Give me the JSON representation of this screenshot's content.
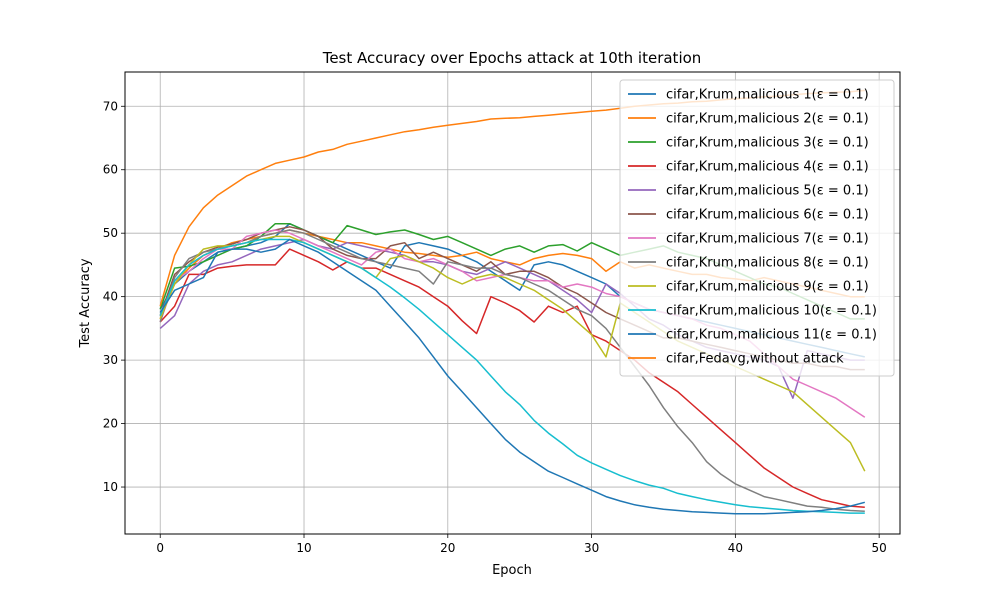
{
  "chart_data": {
    "type": "line",
    "title": "Test Accuracy over Epochs attack at 10th iteration",
    "xlabel": "Epoch",
    "ylabel": "Test Accuracy",
    "xlim": [
      -2.45,
      51.45
    ],
    "ylim": [
      2.6,
      75.4
    ],
    "xticks": [
      0,
      10,
      20,
      30,
      40,
      50
    ],
    "yticks": [
      10,
      20,
      30,
      40,
      50,
      60,
      70
    ],
    "grid": true,
    "legend_position": "upper right",
    "x": [
      0,
      1,
      2,
      3,
      4,
      5,
      6,
      7,
      8,
      9,
      10,
      11,
      12,
      13,
      14,
      15,
      16,
      17,
      18,
      19,
      20,
      21,
      22,
      23,
      24,
      25,
      26,
      27,
      28,
      29,
      30,
      31,
      32,
      33,
      34,
      35,
      36,
      37,
      38,
      39,
      40,
      41,
      42,
      43,
      44,
      45,
      46,
      47,
      48,
      49
    ],
    "series": [
      {
        "name": "cifar,Krum,malicious 1(ε = 0.1)",
        "color": "#1f77b4",
        "values": [
          38.0,
          42.0,
          44.0,
          45.5,
          47.0,
          47.5,
          48.0,
          48.5,
          49.5,
          51.5,
          50.5,
          49.5,
          48.5,
          47.5,
          46.5,
          45.5,
          44.5,
          48.0,
          48.5,
          48.0,
          47.5,
          46.5,
          45.5,
          44.0,
          42.5,
          41.0,
          45.0,
          45.5,
          45.0,
          44.0,
          43.0,
          42.0,
          40.0,
          39.0,
          38.0,
          37.5,
          37.0,
          36.5,
          36.0,
          35.5,
          35.0,
          34.5,
          34.0,
          33.5,
          33.0,
          32.5,
          32.0,
          31.5,
          31.0,
          30.5
        ]
      },
      {
        "name": "cifar,Krum,malicious 2(ε = 0.1)",
        "color": "#ff7f0e",
        "values": [
          36.5,
          42.0,
          44.5,
          46.5,
          47.5,
          48.5,
          49.0,
          49.5,
          50.0,
          50.5,
          50.0,
          49.5,
          49.0,
          48.5,
          48.5,
          48.0,
          47.5,
          47.0,
          46.8,
          46.5,
          46.2,
          46.5,
          47.0,
          46.0,
          45.5,
          45.0,
          46.0,
          46.5,
          46.8,
          46.5,
          46.0,
          44.0,
          45.5,
          44.5,
          45.0,
          44.5,
          44.0,
          43.5,
          43.5,
          43.0,
          42.8,
          42.5,
          43.0,
          42.5,
          42.0,
          41.5,
          41.0,
          40.5,
          40.0,
          40.0
        ]
      },
      {
        "name": "cifar,Krum,malicious 3(ε = 0.1)",
        "color": "#2ca02c",
        "values": [
          38.0,
          44.5,
          44.8,
          45.5,
          46.5,
          47.5,
          48.0,
          49.5,
          51.5,
          51.5,
          50.5,
          49.5,
          48.5,
          51.2,
          50.5,
          49.8,
          50.2,
          50.5,
          49.8,
          49.0,
          49.5,
          48.5,
          47.5,
          46.5,
          47.5,
          48.0,
          47.0,
          48.0,
          48.2,
          47.2,
          48.5,
          47.5,
          46.5,
          47.0,
          47.5,
          48.0,
          47.0,
          46.5,
          46.0,
          45.0,
          44.0,
          43.0,
          42.0,
          41.5,
          40.5,
          39.5,
          38.5,
          37.5,
          36.5,
          36.5
        ]
      },
      {
        "name": "cifar,Krum,malicious 4(ε = 0.1)",
        "color": "#d62728",
        "values": [
          36.0,
          38.5,
          43.5,
          43.5,
          44.5,
          44.8,
          45.0,
          45.0,
          45.0,
          47.5,
          46.5,
          45.5,
          44.2,
          45.5,
          44.5,
          44.5,
          43.5,
          42.5,
          41.5,
          40.0,
          38.5,
          36.2,
          34.2,
          40.0,
          39.0,
          37.8,
          36.0,
          38.5,
          37.5,
          38.5,
          34.0,
          33.0,
          31.5,
          30.0,
          28.0,
          26.5,
          25.0,
          23.0,
          21.0,
          19.0,
          17.0,
          15.0,
          13.0,
          11.5,
          10.0,
          9.0,
          8.0,
          7.5,
          7.0,
          6.8
        ]
      },
      {
        "name": "cifar,Krum,malicious 5(ε = 0.1)",
        "color": "#9467bd",
        "values": [
          35.0,
          37.0,
          42.0,
          44.0,
          45.0,
          45.5,
          46.5,
          47.5,
          48.0,
          48.5,
          49.0,
          48.0,
          47.5,
          48.5,
          48.0,
          47.5,
          47.0,
          46.5,
          45.5,
          45.5,
          45.0,
          44.0,
          43.5,
          44.5,
          45.5,
          44.5,
          43.5,
          42.5,
          41.0,
          39.5,
          37.5,
          42.0,
          40.5,
          38.5,
          36.5,
          35.5,
          34.0,
          33.0,
          32.0,
          31.5,
          31.0,
          30.5,
          30.0,
          29.0,
          24.0,
          31.5,
          31.0,
          30.5,
          30.0,
          30.0
        ]
      },
      {
        "name": "cifar,Krum,malicious 6(ε = 0.1)",
        "color": "#8c564b",
        "values": [
          37.0,
          43.5,
          45.5,
          47.0,
          47.8,
          48.3,
          49.0,
          50.0,
          50.5,
          51.0,
          50.5,
          49.5,
          47.5,
          46.5,
          46.0,
          46.0,
          48.0,
          48.5,
          46.0,
          47.0,
          46.0,
          45.0,
          44.0,
          45.5,
          43.5,
          44.0,
          44.0,
          43.0,
          41.5,
          40.5,
          39.0,
          37.5,
          36.5,
          35.5,
          34.5,
          33.5,
          33.5,
          33.0,
          32.5,
          32.0,
          31.5,
          31.0,
          30.5,
          30.0,
          29.5,
          29.5,
          29.0,
          29.0,
          28.5,
          28.5
        ]
      },
      {
        "name": "cifar,Krum,malicious 7(ε = 0.1)",
        "color": "#e377c2",
        "values": [
          36.0,
          42.5,
          44.0,
          46.0,
          47.5,
          47.5,
          49.5,
          50.0,
          50.5,
          50.0,
          49.0,
          48.0,
          47.0,
          46.0,
          45.0,
          47.0,
          47.5,
          46.0,
          45.5,
          46.0,
          45.0,
          44.0,
          42.5,
          43.0,
          43.5,
          43.0,
          42.5,
          42.5,
          41.5,
          42.0,
          41.5,
          40.5,
          40.0,
          39.0,
          38.0,
          37.5,
          37.0,
          36.5,
          35.5,
          35.0,
          34.0,
          33.0,
          31.0,
          29.0,
          27.0,
          26.0,
          25.0,
          24.0,
          22.5,
          21.0
        ]
      },
      {
        "name": "cifar,Krum,malicious 8(ε = 0.1)",
        "color": "#7f7f7f",
        "values": [
          36.0,
          43.0,
          46.0,
          47.0,
          47.5,
          48.0,
          48.5,
          49.5,
          50.0,
          50.5,
          50.0,
          49.0,
          48.0,
          47.0,
          46.0,
          45.5,
          45.0,
          44.5,
          44.0,
          42.0,
          45.5,
          45.0,
          44.5,
          44.5,
          43.5,
          43.0,
          42.0,
          41.0,
          39.5,
          38.0,
          37.0,
          35.0,
          32.0,
          29.0,
          26.0,
          22.5,
          19.5,
          17.0,
          14.0,
          12.0,
          10.5,
          9.5,
          8.5,
          8.0,
          7.5,
          7.0,
          6.8,
          6.5,
          6.3,
          6.2
        ]
      },
      {
        "name": "cifar,Krum,malicious 9(ε = 0.1)",
        "color": "#bcbd22",
        "values": [
          36.5,
          42.0,
          45.0,
          47.5,
          48.0,
          48.0,
          48.5,
          49.0,
          49.5,
          49.5,
          48.5,
          47.5,
          46.5,
          45.5,
          44.5,
          43.0,
          46.0,
          46.5,
          45.5,
          44.5,
          43.0,
          42.0,
          43.0,
          43.5,
          43.0,
          42.0,
          41.0,
          39.5,
          38.0,
          36.0,
          34.0,
          30.5,
          39.0,
          37.5,
          36.0,
          34.5,
          33.0,
          32.0,
          31.0,
          30.0,
          29.0,
          28.0,
          27.0,
          26.0,
          25.0,
          23.0,
          21.0,
          19.0,
          17.0,
          12.5
        ]
      },
      {
        "name": "cifar,Krum,malicious 10(ε = 0.1)",
        "color": "#17becf",
        "values": [
          37.0,
          42.5,
          45.0,
          46.5,
          47.5,
          48.0,
          48.5,
          49.0,
          49.0,
          49.0,
          48.5,
          47.5,
          46.5,
          45.5,
          44.5,
          43.0,
          41.5,
          39.8,
          38.0,
          36.0,
          34.0,
          32.0,
          30.0,
          27.5,
          25.0,
          23.0,
          20.5,
          18.5,
          16.8,
          15.0,
          13.8,
          12.8,
          11.8,
          11.0,
          10.3,
          9.8,
          9.0,
          8.5,
          8.0,
          7.6,
          7.2,
          6.9,
          6.7,
          6.5,
          6.3,
          6.2,
          6.1,
          6.0,
          5.9,
          5.9
        ]
      },
      {
        "name": "cifar,Krum,malicious 11(ε = 0.1)",
        "color": "#1f77b4",
        "values": [
          37.5,
          41.0,
          42.0,
          43.0,
          47.0,
          47.5,
          47.5,
          47.0,
          47.5,
          49.0,
          48.0,
          47.0,
          45.5,
          44.0,
          42.5,
          41.0,
          38.5,
          36.0,
          33.5,
          30.5,
          27.5,
          25.0,
          22.5,
          20.0,
          17.5,
          15.5,
          14.0,
          12.5,
          11.5,
          10.5,
          9.5,
          8.5,
          7.8,
          7.2,
          6.8,
          6.5,
          6.3,
          6.1,
          6.0,
          5.9,
          5.8,
          5.8,
          5.8,
          5.9,
          6.0,
          6.1,
          6.3,
          6.6,
          7.0,
          7.6
        ]
      },
      {
        "name": "cifar,Fedavg,without attack",
        "color": "#ff7f0e",
        "values": [
          38.5,
          46.5,
          51.0,
          54.0,
          56.0,
          57.5,
          59.0,
          60.0,
          61.0,
          61.5,
          62.0,
          62.8,
          63.2,
          64.0,
          64.5,
          65.0,
          65.5,
          66.0,
          66.3,
          66.7,
          67.0,
          67.3,
          67.6,
          68.0,
          68.1,
          68.2,
          68.4,
          68.6,
          68.8,
          69.0,
          69.2,
          69.4,
          69.7,
          70.0,
          70.2,
          70.4,
          70.5,
          70.7,
          70.8,
          71.0,
          71.2,
          71.3,
          71.5,
          71.6,
          71.8,
          72.0,
          72.1,
          72.2,
          72.3,
          72.5
        ]
      }
    ]
  }
}
